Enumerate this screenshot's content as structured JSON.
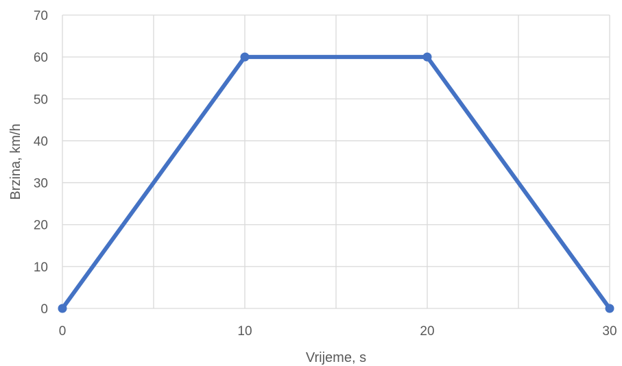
{
  "chart_data": {
    "type": "line",
    "title": "",
    "xlabel": "Vrijeme, s",
    "ylabel": "Brzina, km/h",
    "xlim": [
      0,
      30
    ],
    "ylim": [
      0,
      70
    ],
    "x_ticks": [
      0,
      10,
      20,
      30
    ],
    "y_ticks": [
      0,
      10,
      20,
      30,
      40,
      50,
      60,
      70
    ],
    "x_minor_gridlines": [
      5,
      15,
      25
    ],
    "grid": true,
    "legend": "none",
    "series": [
      {
        "color": "#4472C4",
        "marker": "circle",
        "points": [
          {
            "x": 0,
            "y": 0
          },
          {
            "x": 10,
            "y": 60
          },
          {
            "x": 20,
            "y": 60
          },
          {
            "x": 30,
            "y": 0
          }
        ]
      }
    ],
    "colors": {
      "series": "#4472C4",
      "grid": "#D9D9D9",
      "text": "#595959"
    }
  }
}
